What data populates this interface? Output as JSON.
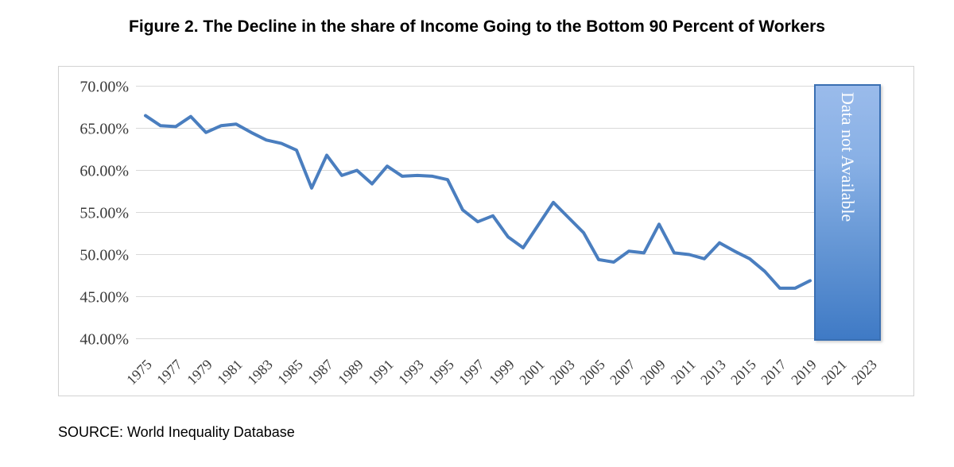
{
  "title": "Figure 2. The Decline in the share of Income Going to the Bottom 90 Percent of Workers",
  "source": "SOURCE: World Inequality Database",
  "overlay": {
    "label": "Data not Available",
    "border_color": "#3a6fb2",
    "gradient_top": "#9abbeb",
    "gradient_bottom": "#3f7ac5",
    "text_color": "#ffffff"
  },
  "chart_data": {
    "type": "line",
    "title": "Figure 2. The Decline in the share of Income Going to the Bottom 90 Percent of Workers",
    "xlabel": "",
    "ylabel": "",
    "x": [
      1975,
      1976,
      1977,
      1978,
      1979,
      1980,
      1981,
      1982,
      1983,
      1984,
      1985,
      1986,
      1987,
      1988,
      1989,
      1990,
      1991,
      1992,
      1993,
      1994,
      1995,
      1996,
      1997,
      1998,
      1999,
      2000,
      2001,
      2002,
      2003,
      2004,
      2005,
      2006,
      2007,
      2008,
      2009,
      2010,
      2011,
      2012,
      2013,
      2014,
      2015,
      2016,
      2017,
      2018,
      2019
    ],
    "values": [
      66.5,
      65.3,
      65.2,
      66.4,
      64.5,
      65.3,
      65.5,
      64.5,
      63.6,
      63.2,
      62.4,
      57.9,
      61.8,
      59.4,
      60.0,
      58.4,
      60.5,
      59.3,
      59.4,
      59.3,
      58.9,
      55.3,
      53.9,
      54.6,
      52.1,
      50.8,
      53.5,
      56.2,
      54.4,
      52.6,
      49.4,
      49.1,
      50.4,
      50.2,
      53.6,
      50.2,
      50.0,
      49.5,
      51.4,
      50.4,
      49.5,
      48.0,
      46.0,
      46.0,
      46.9
    ],
    "y_ticks": [
      70,
      65,
      60,
      55,
      50,
      45,
      40
    ],
    "y_tick_labels": [
      "70.00%",
      "65.00%",
      "60.00%",
      "55.00%",
      "50.00%",
      "45.00%",
      "40.00%"
    ],
    "x_tick_labels": [
      "1975",
      "1977",
      "1979",
      "1981",
      "1983",
      "1985",
      "1987",
      "1989",
      "1991",
      "1993",
      "1995",
      "1997",
      "1999",
      "2001",
      "2003",
      "2005",
      "2007",
      "2009",
      "2011",
      "2013",
      "2015",
      "2017",
      "2019",
      "2021",
      "2023"
    ],
    "ylim": [
      40,
      70
    ],
    "xlim": [
      1975,
      2023
    ],
    "grid": "horizontal",
    "legend": "none",
    "line_color": "#4a7ebf",
    "line_width": 4,
    "gridline_color": "#d9d9d9",
    "tick_color": "#3a3a3a",
    "data_unavailable_span": [
      2019.3,
      2023.8
    ]
  }
}
